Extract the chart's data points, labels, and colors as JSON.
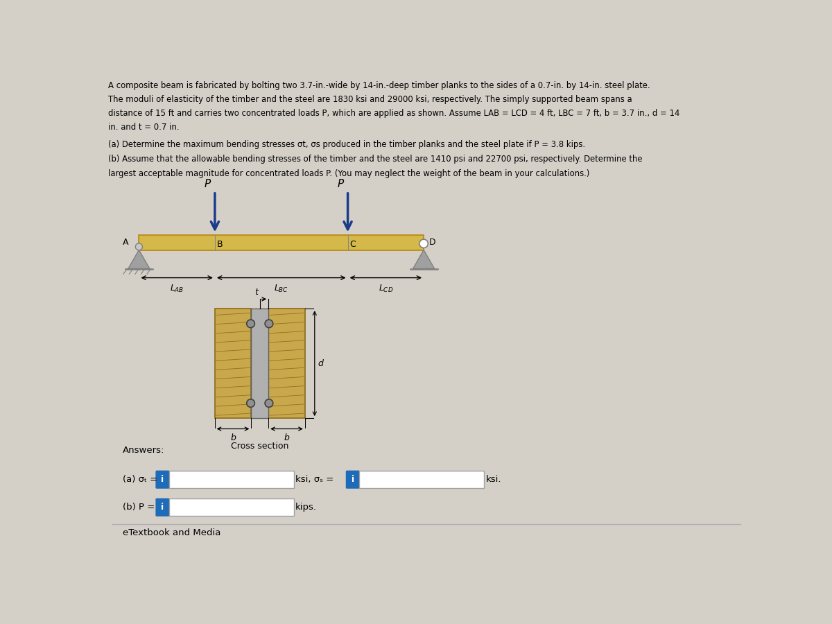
{
  "bg_color": "#d4d0c8",
  "text_color": "#000000",
  "beam_color": "#d4b84a",
  "beam_outline": "#b8860b",
  "timber_color": "#c8a84b",
  "steel_color": "#b0b0b0",
  "arrow_color": "#1a3a8a",
  "support_color": "#808080",
  "answer_bg": "#ffffff",
  "input_blue": "#1e6bb8",
  "answers_label": "Answers:",
  "answer_a_label": "(a) σt =",
  "answer_a_mid": "ksi, σs =",
  "answer_a_end": "ksi.",
  "answer_b_label": "(b) P =",
  "answer_b_end": "kips.",
  "etextbook": "eTextbook and Media",
  "problem_line1": "A composite beam is fabricated by bolting two 3.7-in.-wide by 14-in.-deep timber planks to the sides of a 0.7-in. by 14-in. steel plate.",
  "problem_line2": "The moduli of elasticity of the timber and the steel are 1830 ksi and 29000 ksi, respectively. The simply supported beam spans a",
  "problem_line3": "distance of 15 ft and carries two concentrated loads P, which are applied as shown. Assume LAB = LCD = 4 ft, LBC = 7 ft, b = 3.7 in., d = 14",
  "problem_line4": "in. and t = 0.7 in.",
  "part_a": "(a) Determine the maximum bending stresses σt, σs produced in the timber planks and the steel plate if P = 3.8 kips.",
  "part_b1": "(b) Assume that the allowable bending stresses of the timber and the steel are 1410 psi and 22700 psi, respectively. Determine the",
  "part_b2": "largest acceptable magnitude for concentrated loads P. (You may neglect the weight of the beam in your calculations.)"
}
